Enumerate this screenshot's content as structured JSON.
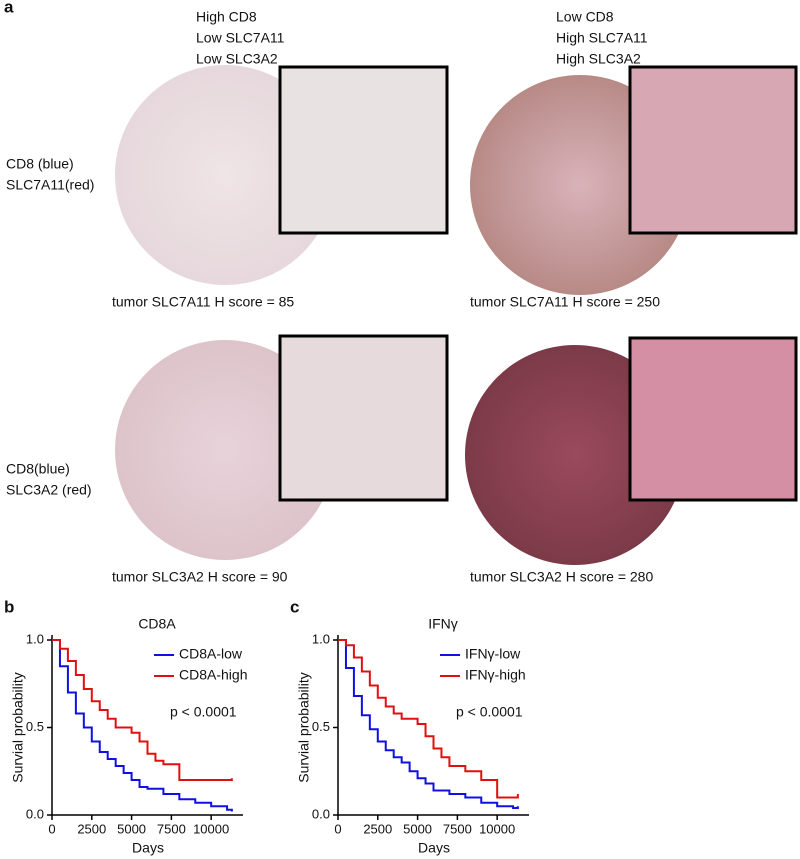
{
  "panel_a": {
    "label": "a",
    "columns": [
      {
        "header": [
          "High CD8",
          "Low SLC7A11",
          "Low SLC3A2"
        ]
      },
      {
        "header": [
          "Low CD8",
          "High SLC7A11",
          "High SLC3A2"
        ]
      }
    ],
    "rows": [
      {
        "label": [
          "CD8 (blue)",
          "SLC7A11(red)"
        ],
        "captions": [
          "tumor SLC7A11 H score = 85",
          "tumor SLC7A11 H score = 250"
        ]
      },
      {
        "label": [
          "CD8(blue)",
          "SLC3A2 (red)"
        ],
        "captions": [
          "tumor SLC3A2 H score = 90",
          "tumor SLC3A2 H score = 280"
        ]
      }
    ]
  },
  "chart_data": [
    {
      "type": "line",
      "panel_label": "b",
      "title": "CD8A",
      "x_label": "Days",
      "y_label": "Survial probability",
      "annotation": "p < 0.0001",
      "xlim": [
        0,
        12000
      ],
      "xticks": [
        0,
        2500,
        5000,
        7500,
        10000
      ],
      "ylim": [
        0,
        1
      ],
      "yticks": [
        {
          "value": 0,
          "label": "0.0"
        },
        {
          "value": 0.5,
          "label": "0.5"
        },
        {
          "value": 1,
          "label": "1.0"
        }
      ],
      "series": [
        {
          "name": "CD8A-low",
          "color": "#1010e0",
          "x": [
            0,
            500,
            1000,
            1500,
            2000,
            2500,
            3000,
            3500,
            4000,
            4500,
            5000,
            5500,
            6000,
            7000,
            8000,
            9000,
            10000,
            11000,
            11300
          ],
          "values": [
            1.0,
            0.85,
            0.7,
            0.58,
            0.5,
            0.42,
            0.36,
            0.32,
            0.28,
            0.24,
            0.2,
            0.16,
            0.15,
            0.12,
            0.09,
            0.07,
            0.05,
            0.03,
            0.02
          ]
        },
        {
          "name": "CD8A-high",
          "color": "#e01010",
          "x": [
            0,
            500,
            1000,
            1500,
            2000,
            2500,
            3000,
            3500,
            4000,
            5000,
            5500,
            6000,
            6500,
            7000,
            8000,
            9000,
            10000,
            11300
          ],
          "values": [
            1.0,
            0.95,
            0.88,
            0.8,
            0.72,
            0.65,
            0.6,
            0.55,
            0.5,
            0.47,
            0.42,
            0.35,
            0.31,
            0.29,
            0.2,
            0.2,
            0.2,
            0.21
          ]
        }
      ]
    },
    {
      "type": "line",
      "panel_label": "c",
      "title": "IFNγ",
      "x_label": "Days",
      "y_label": "Survial probability",
      "annotation": "p < 0.0001",
      "xlim": [
        0,
        12000
      ],
      "xticks": [
        0,
        2500,
        5000,
        7500,
        10000
      ],
      "ylim": [
        0,
        1
      ],
      "yticks": [
        {
          "value": 0,
          "label": "0.0"
        },
        {
          "value": 0.5,
          "label": "0.5"
        },
        {
          "value": 1,
          "label": "1.0"
        }
      ],
      "series": [
        {
          "name": "IFNγ-low",
          "color": "#1010e0",
          "x": [
            0,
            500,
            1000,
            1500,
            2000,
            2500,
            3000,
            3500,
            4000,
            4500,
            5000,
            5500,
            6000,
            7000,
            8000,
            9000,
            10000,
            11000,
            11300
          ],
          "values": [
            1.0,
            0.84,
            0.68,
            0.57,
            0.49,
            0.42,
            0.37,
            0.33,
            0.3,
            0.25,
            0.21,
            0.18,
            0.14,
            0.12,
            0.1,
            0.07,
            0.05,
            0.04,
            0.05
          ]
        },
        {
          "name": "IFNγ-high",
          "color": "#e01010",
          "x": [
            0,
            500,
            1000,
            1500,
            2000,
            2500,
            3000,
            3500,
            4000,
            5000,
            5500,
            6000,
            6500,
            7000,
            8000,
            9000,
            10000,
            11000,
            11300
          ],
          "values": [
            1.0,
            0.97,
            0.9,
            0.82,
            0.74,
            0.67,
            0.62,
            0.58,
            0.55,
            0.52,
            0.45,
            0.38,
            0.33,
            0.28,
            0.25,
            0.2,
            0.1,
            0.1,
            0.12
          ]
        }
      ]
    }
  ]
}
